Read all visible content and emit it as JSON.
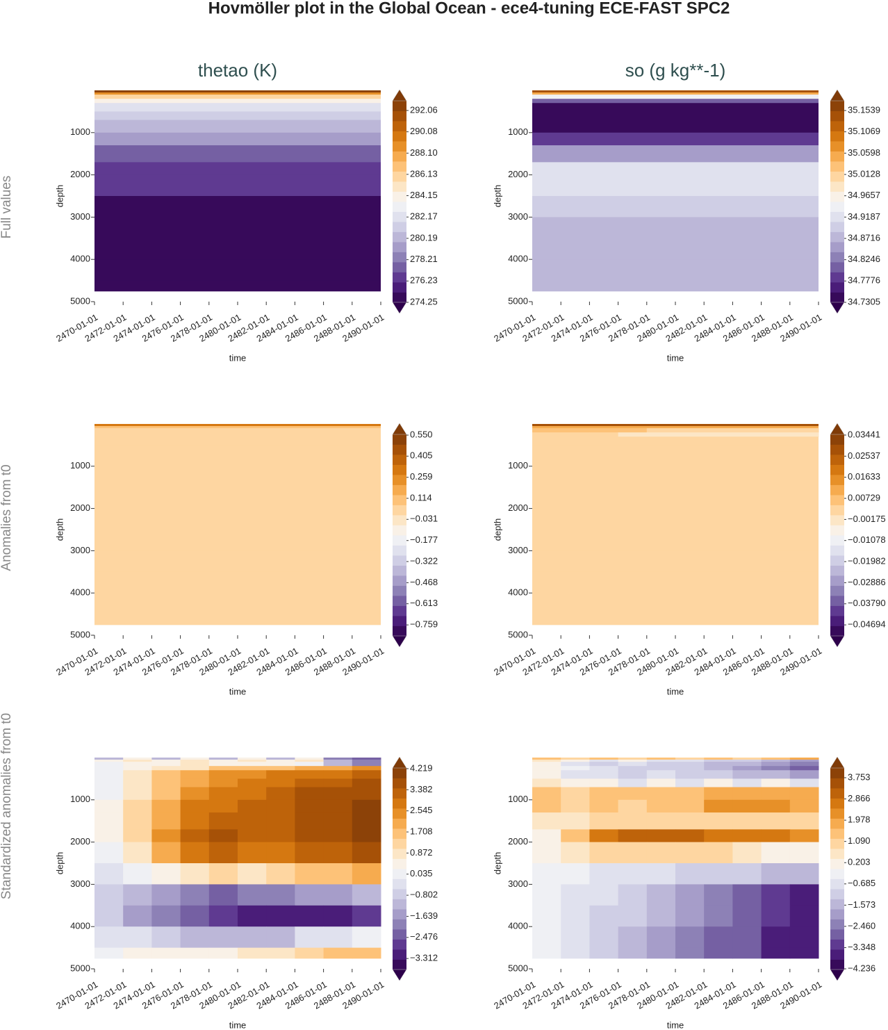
{
  "title": "Hovmöller plot in the Global Ocean - ece4-tuning ECE-FAST SPC2",
  "row_labels": [
    "Full values",
    "Anomalies from t0",
    "Standardized anomalies from t0"
  ],
  "colormap": [
    "#2d004b",
    "#542788",
    "#8073ac",
    "#b2abd2",
    "#d8daeb",
    "#f7f7f7",
    "#fee0b6",
    "#fdb863",
    "#e08214",
    "#b35806",
    "#7f3b08"
  ],
  "chart_data": [
    {
      "type": "contour",
      "title": "thetao (K)",
      "xlabel": "time",
      "ylabel": "depth",
      "xticks": [
        "2470-01-01",
        "2472-01-01",
        "2474-01-01",
        "2476-01-01",
        "2478-01-01",
        "2480-01-01",
        "2482-01-01",
        "2484-01-01",
        "2486-01-01",
        "2488-01-01",
        "2490-01-01"
      ],
      "ylim": [
        0,
        5000
      ],
      "y_inverted": true,
      "yticks": [
        1000,
        2000,
        3000,
        4000,
        5000
      ],
      "clim": [
        274.25,
        292.96
      ],
      "cbar_ticks": [
        274.25,
        276.23,
        278.21,
        280.19,
        282.17,
        284.15,
        286.13,
        {
          "value": 288.1,
          "label": "288.10"
        },
        290.08,
        292.06
      ],
      "field": {
        "depth_edges": [
          0,
          50,
          100,
          200,
          300,
          500,
          700,
          1000,
          1300,
          1700,
          2000,
          2500,
          3000,
          3500,
          4000,
          4500,
          4750
        ],
        "values": [
          292.5,
          289,
          286,
          284,
          282.5,
          281,
          280,
          279,
          277.5,
          276.5,
          276.5,
          275,
          275,
          275,
          275,
          275
        ]
      }
    },
    {
      "type": "contour",
      "title": "so (g kg**-1)",
      "xlabel": "time",
      "ylabel": "depth",
      "xticks": [
        "2470-01-01",
        "2472-01-01",
        "2474-01-01",
        "2476-01-01",
        "2478-01-01",
        "2480-01-01",
        "2482-01-01",
        "2484-01-01",
        "2486-01-01",
        "2488-01-01",
        "2490-01-01"
      ],
      "ylim": [
        0,
        5000
      ],
      "y_inverted": true,
      "yticks": [
        1000,
        2000,
        3000,
        4000,
        5000
      ],
      "clim": [
        34.7305,
        35.1754
      ],
      "cbar_ticks": [
        34.7305,
        34.7776,
        34.8246,
        34.8716,
        34.9187,
        34.9657,
        35.0128,
        35.0598,
        35.1069,
        35.1539
      ],
      "field": {
        "depth_edges": [
          0,
          50,
          100,
          200,
          300,
          500,
          700,
          1000,
          1300,
          1700,
          2000,
          2500,
          3000,
          3500,
          4000,
          4500,
          4750
        ],
        "values": [
          35.15,
          35.05,
          34.95,
          34.8,
          34.74,
          34.73,
          34.74,
          34.78,
          34.85,
          34.93,
          34.93,
          34.9,
          34.87,
          34.87,
          34.87,
          34.87
        ]
      }
    },
    {
      "type": "contour",
      "xlabel": "time",
      "ylabel": "depth",
      "xticks": [
        "2470-01-01",
        "2472-01-01",
        "2474-01-01",
        "2476-01-01",
        "2478-01-01",
        "2480-01-01",
        "2482-01-01",
        "2484-01-01",
        "2486-01-01",
        "2488-01-01",
        "2490-01-01"
      ],
      "ylim": [
        0,
        5000
      ],
      "y_inverted": true,
      "yticks": [
        1000,
        2000,
        3000,
        4000,
        5000
      ],
      "clim": [
        -0.835,
        0.555
      ],
      "cbar_ticks": [
        {
          "value": -0.759,
          "label": "−0.759"
        },
        {
          "value": -0.613,
          "label": "−0.613"
        },
        {
          "value": -0.468,
          "label": "−0.468"
        },
        {
          "value": -0.322,
          "label": "−0.322"
        },
        {
          "value": -0.177,
          "label": "−0.177"
        },
        {
          "value": -0.031,
          "label": "−0.031"
        },
        0.114,
        0.259,
        0.405,
        {
          "value": 0.55,
          "label": "0.550"
        }
      ],
      "field": {
        "depth_edges": [
          0,
          50,
          100,
          200,
          300,
          500,
          700,
          1000,
          1300,
          1700,
          2000,
          2500,
          3000,
          3500,
          4000,
          4500,
          4750
        ],
        "values": [
          0.3,
          0.1,
          0.05,
          0.05,
          0.05,
          0.05,
          0.05,
          0.05,
          0.05,
          0.05,
          0.05,
          0.05,
          0.05,
          0.05,
          0.05,
          0.05
        ]
      }
    },
    {
      "type": "contour",
      "xlabel": "time",
      "ylabel": "depth",
      "xticks": [
        "2470-01-01",
        "2472-01-01",
        "2474-01-01",
        "2476-01-01",
        "2478-01-01",
        "2480-01-01",
        "2482-01-01",
        "2484-01-01",
        "2486-01-01",
        "2488-01-01",
        "2490-01-01"
      ],
      "ylim": [
        0,
        5000
      ],
      "y_inverted": true,
      "yticks": [
        1000,
        2000,
        3000,
        4000,
        5000
      ],
      "clim": [
        -0.05167,
        0.0347
      ],
      "cbar_ticks": [
        {
          "value": -0.04694,
          "label": "−0.04694"
        },
        {
          "value": -0.0379,
          "label": "−0.03790"
        },
        {
          "value": -0.02886,
          "label": "−0.02886"
        },
        {
          "value": -0.01982,
          "label": "−0.01982"
        },
        {
          "value": -0.01078,
          "label": "−0.01078"
        },
        {
          "value": -0.00175,
          "label": "−0.00175"
        },
        0.00729,
        0.01633,
        0.02537,
        0.03441
      ],
      "field": {
        "depth_edges": [
          0,
          50,
          100,
          200,
          300,
          500,
          700,
          1000,
          1300,
          1700,
          2000,
          2500,
          3000,
          3500,
          4000,
          4500,
          4750
        ],
        "values": [
          0.03,
          0.012,
          [
            0.008,
            0.007,
            0.007,
            0.005,
            0.004,
            0.004,
            0.004,
            0.004,
            0.004,
            0.004
          ],
          [
            0.004,
            0.004,
            0.004,
            0.0,
            0.0,
            0.0,
            0.0,
            0.0,
            0.0,
            0.0
          ],
          0.002,
          0.002,
          0.002,
          0.002,
          0.002,
          0.002,
          0.002,
          0.002,
          0.002,
          0.002,
          0.002,
          0.002
        ]
      }
    },
    {
      "type": "contour",
      "xlabel": "time",
      "ylabel": "depth",
      "xticks": [
        "2470-01-01",
        "2472-01-01",
        "2474-01-01",
        "2476-01-01",
        "2478-01-01",
        "2480-01-01",
        "2482-01-01",
        "2484-01-01",
        "2486-01-01",
        "2488-01-01",
        "2490-01-01"
      ],
      "ylim": [
        0,
        5000
      ],
      "y_inverted": true,
      "yticks": [
        1000,
        2000,
        3000,
        4000,
        5000
      ],
      "clim": [
        -3.75,
        4.246
      ],
      "cbar_ticks": [
        {
          "value": -3.312,
          "label": "−3.312"
        },
        {
          "value": -2.476,
          "label": "−2.476"
        },
        {
          "value": -1.639,
          "label": "−1.639"
        },
        {
          "value": -0.802,
          "label": "−0.802"
        },
        0.035,
        0.872,
        1.708,
        2.545,
        3.382,
        4.219
      ],
      "field": {
        "depth_edges": [
          0,
          50,
          100,
          200,
          300,
          500,
          700,
          1000,
          1300,
          1700,
          2000,
          2500,
          3000,
          3500,
          4000,
          4500,
          4750
        ],
        "values": [
          [
            -1,
            0.5,
            -1,
            0.5,
            -1,
            0.5,
            -1,
            0.5,
            -2,
            -2.5
          ],
          [
            0.5,
            1,
            0.5,
            1,
            0.5,
            1,
            0.5,
            1,
            -1,
            -2
          ],
          [
            0,
            0.5,
            0.5,
            1,
            0.5,
            0.5,
            0.5,
            0,
            -1,
            -2
          ],
          [
            0,
            0.5,
            1,
            1,
            1.5,
            1.5,
            1.5,
            2,
            2,
            2.5
          ],
          [
            0,
            0.8,
            1.5,
            2,
            2.5,
            2.5,
            2.8,
            3,
            3,
            3.2
          ],
          [
            0,
            1,
            1.7,
            2.2,
            2.5,
            2.8,
            3,
            3.2,
            3.3,
            3.5
          ],
          [
            0.2,
            1,
            1.8,
            2.5,
            2.8,
            3,
            3.2,
            3.5,
            3.5,
            3.8
          ],
          [
            0.3,
            1.2,
            2,
            2.8,
            3,
            3.2,
            3.3,
            3.5,
            3.8,
            4
          ],
          [
            0.3,
            1.3,
            2.2,
            3,
            3.2,
            3.3,
            3.4,
            3.5,
            3.8,
            4
          ],
          [
            0.3,
            1.3,
            2.5,
            3.3,
            3.5,
            3.4,
            3.4,
            3.5,
            3.8,
            4
          ],
          [
            0,
            1,
            2,
            3,
            3.3,
            3,
            3,
            3.2,
            3.4,
            3.8
          ],
          [
            -0.5,
            0,
            0.5,
            1,
            1.2,
            1,
            1.2,
            1.5,
            1.8,
            2.2
          ],
          [
            -0.8,
            -1.2,
            -1.5,
            -2,
            -2.2,
            -1.8,
            -1.8,
            -1.5,
            -1.5,
            -1
          ],
          [
            -0.8,
            -1.5,
            -2,
            -2.5,
            -2.8,
            -3,
            -3.2,
            -3.2,
            -3,
            -2.8
          ],
          [
            -0.2,
            -0.5,
            -0.8,
            -1,
            -1.2,
            -1.2,
            -1,
            -0.5,
            -0.2,
            0
          ],
          [
            0.2,
            0.5,
            0.3,
            0.5,
            0.5,
            0.8,
            1,
            1.3,
            1.5,
            1.8
          ]
        ]
      }
    },
    {
      "type": "contour",
      "xlabel": "time",
      "ylabel": "depth",
      "xticks": [
        "2470-01-01",
        "2472-01-01",
        "2474-01-01",
        "2476-01-01",
        "2478-01-01",
        "2480-01-01",
        "2482-01-01",
        "2484-01-01",
        "2486-01-01",
        "2488-01-01",
        "2490-01-01"
      ],
      "ylim": [
        0,
        5000
      ],
      "y_inverted": true,
      "yticks": [
        1000,
        2000,
        3000,
        4000,
        5000
      ],
      "clim": [
        -4.265,
        4.16
      ],
      "cbar_ticks": [
        {
          "value": -4.236,
          "label": "−4.236"
        },
        {
          "value": -3.348,
          "label": "−3.348"
        },
        {
          "value": -2.46,
          "label": "−2.460"
        },
        {
          "value": -1.573,
          "label": "−1.573"
        },
        {
          "value": -0.685,
          "label": "−0.685"
        },
        0.203,
        {
          "value": 1.09,
          "label": "1.090"
        },
        1.978,
        2.866,
        3.753
      ],
      "field": {
        "depth_edges": [
          0,
          50,
          100,
          200,
          300,
          500,
          700,
          1000,
          1300,
          1700,
          2000,
          2500,
          3000,
          3500,
          4000,
          4500,
          4750
        ],
        "values": [
          [
            1.5,
            1,
            1.5,
            1,
            1.5,
            1,
            1.5,
            1,
            1.5,
            2
          ],
          [
            0.5,
            0,
            -0.5,
            0,
            -0.5,
            -0.5,
            -1,
            -1,
            -1.5,
            -2
          ],
          [
            0,
            -0.5,
            -1,
            -0.5,
            -1,
            -1,
            -1.5,
            -1.5,
            -2,
            -2.5
          ],
          [
            0,
            -0.3,
            -0.8,
            -1,
            -1,
            -1.2,
            -1.5,
            -2,
            -2.5,
            -3
          ],
          [
            0,
            -0.5,
            -0.5,
            -1,
            -0.5,
            -1,
            -1,
            -1.5,
            -1.5,
            -2
          ],
          [
            0.5,
            0,
            0,
            -0.5,
            0,
            -0.5,
            0,
            -0.5,
            0,
            -0.5
          ],
          [
            1.5,
            1,
            1.5,
            1.5,
            1.5,
            1.5,
            2,
            2,
            2,
            2
          ],
          [
            1.5,
            1.2,
            1.5,
            1.2,
            1.5,
            1.5,
            2.2,
            2.2,
            2.2,
            2
          ],
          [
            0.5,
            0.5,
            0.8,
            1,
            1,
            1,
            1,
            1.2,
            1.2,
            1
          ],
          [
            0.3,
            1.5,
            2.5,
            3,
            3,
            3,
            2.8,
            2.8,
            2.5,
            2.2
          ],
          [
            0,
            0.5,
            1,
            1,
            1,
            0.8,
            0.8,
            0.5,
            0.3,
            0
          ],
          [
            -0.1,
            -0.3,
            -0.5,
            -0.5,
            -0.8,
            -1,
            -1.2,
            -1.3,
            -1.5,
            -1.5
          ],
          [
            -0.2,
            -0.5,
            -0.8,
            -1.2,
            -1.5,
            -2,
            -2.3,
            -2.8,
            -3.2,
            -3.6
          ],
          [
            -0.2,
            -0.5,
            -0.9,
            -1.3,
            -1.6,
            -2.1,
            -2.4,
            -2.9,
            -3.3,
            -3.7
          ],
          [
            -0.2,
            -0.6,
            -1,
            -1.5,
            -1.8,
            -2.2,
            -2.6,
            -3,
            -3.5,
            -3.8
          ],
          [
            -0.2,
            -0.6,
            -1,
            -1.5,
            -1.8,
            -2.2,
            -2.6,
            -3,
            -3.5,
            -3.8
          ]
        ]
      }
    }
  ]
}
